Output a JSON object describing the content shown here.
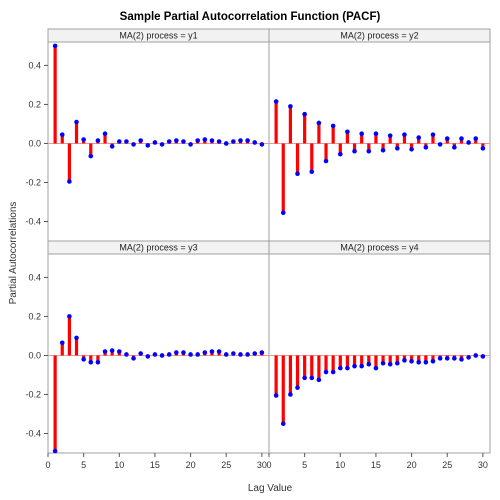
{
  "chart_data": {
    "type": "bar",
    "title": "Sample Partial Autocorrelation Function (PACF)",
    "xlabel": "Lag Value",
    "ylabel": "Partial Autocorrelations",
    "xlim": [
      0,
      31
    ],
    "ylim": [
      -0.5,
      0.52
    ],
    "x_ticks": [
      0,
      5,
      10,
      15,
      20,
      25,
      30
    ],
    "y_ticks": [
      -0.4,
      -0.2,
      0.0,
      0.2,
      0.4
    ],
    "y_tick_labels": [
      "-0.4",
      "-0.2",
      "0.0",
      "0.2",
      "0.4"
    ],
    "colors": {
      "needle": "#ff0000",
      "marker": "#0000ff",
      "reference": "#e89a9a",
      "frame": "#a0a0a0",
      "header_fill": "#f2f2f2"
    },
    "lags": [
      1,
      2,
      3,
      4,
      5,
      6,
      7,
      8,
      9,
      10,
      11,
      12,
      13,
      14,
      15,
      16,
      17,
      18,
      19,
      20,
      21,
      22,
      23,
      24,
      25,
      26,
      27,
      28,
      29,
      30
    ],
    "panels": [
      {
        "label": "MA(2) process = y1",
        "values": [
          0.5,
          0.045,
          -0.195,
          0.11,
          0.02,
          -0.065,
          0.015,
          0.05,
          -0.015,
          0.01,
          0.01,
          -0.005,
          0.015,
          -0.01,
          0.005,
          -0.005,
          0.01,
          0.015,
          0.01,
          -0.005,
          0.015,
          0.02,
          0.015,
          0.01,
          0.0,
          0.01,
          0.015,
          0.015,
          0.005,
          -0.005
        ]
      },
      {
        "label": "MA(2) process = y2",
        "values": [
          0.215,
          -0.355,
          0.19,
          -0.155,
          0.15,
          -0.145,
          0.105,
          -0.09,
          0.09,
          -0.055,
          0.06,
          -0.04,
          0.05,
          -0.04,
          0.05,
          -0.035,
          0.04,
          -0.025,
          0.045,
          -0.03,
          0.03,
          -0.02,
          0.045,
          -0.005,
          0.025,
          -0.02,
          0.025,
          0.005,
          0.025,
          -0.025
        ]
      },
      {
        "label": "MA(2) process = y3",
        "values": [
          -0.49,
          0.065,
          0.2,
          0.09,
          -0.02,
          -0.035,
          -0.035,
          0.02,
          0.025,
          0.02,
          0.005,
          -0.015,
          0.01,
          -0.005,
          0.005,
          0.0,
          0.005,
          0.015,
          0.015,
          0.005,
          0.005,
          0.015,
          0.02,
          0.02,
          0.005,
          0.01,
          0.005,
          0.005,
          0.01,
          0.015
        ]
      },
      {
        "label": "MA(2) process = y4",
        "values": [
          -0.205,
          -0.35,
          -0.2,
          -0.165,
          -0.115,
          -0.115,
          -0.125,
          -0.085,
          -0.085,
          -0.065,
          -0.065,
          -0.055,
          -0.055,
          -0.045,
          -0.065,
          -0.04,
          -0.045,
          -0.04,
          -0.025,
          -0.03,
          -0.035,
          -0.035,
          -0.03,
          -0.015,
          -0.015,
          -0.015,
          -0.02,
          -0.01,
          0.0,
          -0.005
        ]
      }
    ]
  }
}
